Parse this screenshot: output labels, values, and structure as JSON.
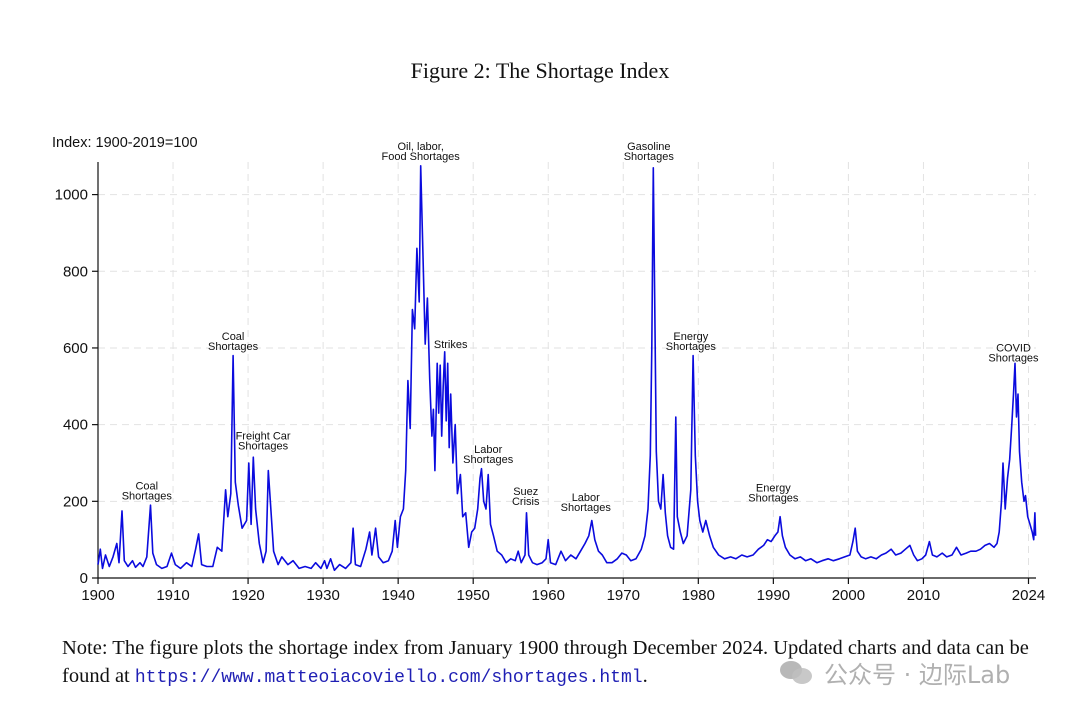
{
  "figure_title": "Figure 2: The Shortage Index",
  "note": {
    "text": "Note: The figure plots the shortage index from January 1900 through December 2024. Updated charts and data can be found at ",
    "url": "https://www.matteoiacoviello.com/shortages.html",
    "suffix": "."
  },
  "watermark": {
    "text": "公众号 · 边际Lab",
    "icon": "wechat-icon"
  },
  "colors": {
    "series": "#0b0bde",
    "grid": "#e2e2e2",
    "axis": "#111111",
    "link": "#1f1fb4"
  },
  "chart_data": {
    "type": "line",
    "title": "Figure 2: The Shortage Index",
    "ylabel": "Index: 1900-2019=100",
    "xlabel": "",
    "xlim": [
      1900,
      2025
    ],
    "ylim": [
      0,
      1085
    ],
    "xticks": [
      1900,
      1910,
      1920,
      1930,
      1940,
      1950,
      1960,
      1970,
      1980,
      1990,
      2000,
      2010,
      2024
    ],
    "yticks": [
      0,
      200,
      400,
      600,
      800,
      1000
    ],
    "grid": true,
    "series": [
      {
        "values": [
          [
            1900,
            35
          ],
          [
            1900.3,
            75
          ],
          [
            1900.6,
            25
          ],
          [
            1901,
            60
          ],
          [
            1901.5,
            30
          ],
          [
            1902,
            55
          ],
          [
            1902.5,
            90
          ],
          [
            1902.8,
            40
          ],
          [
            1903.2,
            175
          ],
          [
            1903.5,
            45
          ],
          [
            1904,
            30
          ],
          [
            1904.6,
            45
          ],
          [
            1905,
            28
          ],
          [
            1905.6,
            40
          ],
          [
            1906,
            30
          ],
          [
            1906.5,
            55
          ],
          [
            1907,
            190
          ],
          [
            1907.3,
            65
          ],
          [
            1907.8,
            35
          ],
          [
            1908.5,
            25
          ],
          [
            1909.2,
            30
          ],
          [
            1909.8,
            65
          ],
          [
            1910.3,
            35
          ],
          [
            1911,
            25
          ],
          [
            1911.8,
            40
          ],
          [
            1912.5,
            30
          ],
          [
            1913,
            75
          ],
          [
            1913.4,
            115
          ],
          [
            1913.8,
            35
          ],
          [
            1914.5,
            30
          ],
          [
            1915.3,
            30
          ],
          [
            1915.9,
            80
          ],
          [
            1916.5,
            70
          ],
          [
            1917,
            230
          ],
          [
            1917.3,
            160
          ],
          [
            1917.7,
            220
          ],
          [
            1918,
            580
          ],
          [
            1918.3,
            250
          ],
          [
            1918.7,
            190
          ],
          [
            1919.2,
            130
          ],
          [
            1919.8,
            150
          ],
          [
            1920.1,
            300
          ],
          [
            1920.4,
            140
          ],
          [
            1920.7,
            315
          ],
          [
            1921,
            180
          ],
          [
            1921.5,
            90
          ],
          [
            1922,
            40
          ],
          [
            1922.4,
            70
          ],
          [
            1922.7,
            280
          ],
          [
            1923,
            190
          ],
          [
            1923.4,
            70
          ],
          [
            1924,
            35
          ],
          [
            1924.5,
            55
          ],
          [
            1925.3,
            35
          ],
          [
            1926,
            45
          ],
          [
            1926.8,
            25
          ],
          [
            1927.6,
            30
          ],
          [
            1928.4,
            25
          ],
          [
            1929,
            40
          ],
          [
            1929.7,
            25
          ],
          [
            1930.2,
            45
          ],
          [
            1930.5,
            25
          ],
          [
            1931,
            50
          ],
          [
            1931.5,
            20
          ],
          [
            1932.2,
            35
          ],
          [
            1933,
            25
          ],
          [
            1933.7,
            40
          ],
          [
            1934,
            130
          ],
          [
            1934.3,
            35
          ],
          [
            1935,
            30
          ],
          [
            1935.7,
            75
          ],
          [
            1936.2,
            120
          ],
          [
            1936.5,
            60
          ],
          [
            1937,
            130
          ],
          [
            1937.4,
            55
          ],
          [
            1938,
            40
          ],
          [
            1938.7,
            45
          ],
          [
            1939.2,
            70
          ],
          [
            1939.6,
            150
          ],
          [
            1939.9,
            80
          ],
          [
            1940.3,
            160
          ],
          [
            1940.7,
            180
          ],
          [
            1941,
            280
          ],
          [
            1941.3,
            515
          ],
          [
            1941.6,
            390
          ],
          [
            1941.9,
            700
          ],
          [
            1942.2,
            650
          ],
          [
            1942.5,
            860
          ],
          [
            1942.8,
            720
          ],
          [
            1943,
            1075
          ],
          [
            1943.3,
            850
          ],
          [
            1943.6,
            610
          ],
          [
            1943.9,
            730
          ],
          [
            1944.2,
            520
          ],
          [
            1944.5,
            370
          ],
          [
            1944.7,
            440
          ],
          [
            1944.9,
            280
          ],
          [
            1945.2,
            560
          ],
          [
            1945.4,
            430
          ],
          [
            1945.6,
            555
          ],
          [
            1945.8,
            370
          ],
          [
            1946,
            500
          ],
          [
            1946.2,
            590
          ],
          [
            1946.4,
            410
          ],
          [
            1946.6,
            560
          ],
          [
            1946.8,
            340
          ],
          [
            1947,
            480
          ],
          [
            1947.3,
            300
          ],
          [
            1947.6,
            400
          ],
          [
            1947.9,
            220
          ],
          [
            1948.3,
            270
          ],
          [
            1948.6,
            160
          ],
          [
            1949,
            170
          ],
          [
            1949.4,
            80
          ],
          [
            1949.8,
            120
          ],
          [
            1950.2,
            130
          ],
          [
            1950.6,
            180
          ],
          [
            1950.9,
            260
          ],
          [
            1951.1,
            285
          ],
          [
            1951.4,
            200
          ],
          [
            1951.7,
            180
          ],
          [
            1952,
            270
          ],
          [
            1952.3,
            140
          ],
          [
            1952.7,
            110
          ],
          [
            1953.2,
            70
          ],
          [
            1953.8,
            60
          ],
          [
            1954.4,
            40
          ],
          [
            1955,
            50
          ],
          [
            1955.6,
            45
          ],
          [
            1956,
            70
          ],
          [
            1956.4,
            40
          ],
          [
            1956.9,
            60
          ],
          [
            1957.1,
            170
          ],
          [
            1957.4,
            60
          ],
          [
            1957.9,
            40
          ],
          [
            1958.5,
            35
          ],
          [
            1959.2,
            40
          ],
          [
            1959.7,
            50
          ],
          [
            1960,
            100
          ],
          [
            1960.3,
            40
          ],
          [
            1961,
            35
          ],
          [
            1961.7,
            70
          ],
          [
            1962.3,
            45
          ],
          [
            1963,
            60
          ],
          [
            1963.7,
            50
          ],
          [
            1964.3,
            70
          ],
          [
            1964.9,
            90
          ],
          [
            1965.4,
            110
          ],
          [
            1965.8,
            150
          ],
          [
            1966.2,
            100
          ],
          [
            1966.7,
            70
          ],
          [
            1967.2,
            60
          ],
          [
            1967.8,
            40
          ],
          [
            1968.5,
            40
          ],
          [
            1969.2,
            50
          ],
          [
            1969.8,
            65
          ],
          [
            1970.4,
            60
          ],
          [
            1971,
            45
          ],
          [
            1971.7,
            50
          ],
          [
            1972.4,
            75
          ],
          [
            1972.9,
            110
          ],
          [
            1973.3,
            180
          ],
          [
            1973.6,
            320
          ],
          [
            1973.8,
            600
          ],
          [
            1974,
            1070
          ],
          [
            1974.2,
            700
          ],
          [
            1974.4,
            330
          ],
          [
            1974.7,
            200
          ],
          [
            1975,
            180
          ],
          [
            1975.3,
            270
          ],
          [
            1975.6,
            170
          ],
          [
            1975.9,
            110
          ],
          [
            1976.3,
            80
          ],
          [
            1976.7,
            75
          ],
          [
            1977,
            420
          ],
          [
            1977.2,
            160
          ],
          [
            1977.6,
            120
          ],
          [
            1978,
            90
          ],
          [
            1978.5,
            110
          ],
          [
            1979,
            230
          ],
          [
            1979.3,
            580
          ],
          [
            1979.6,
            320
          ],
          [
            1979.9,
            200
          ],
          [
            1980.2,
            150
          ],
          [
            1980.6,
            120
          ],
          [
            1981,
            150
          ],
          [
            1981.5,
            110
          ],
          [
            1982,
            80
          ],
          [
            1982.7,
            60
          ],
          [
            1983.5,
            50
          ],
          [
            1984.3,
            55
          ],
          [
            1985,
            50
          ],
          [
            1985.8,
            60
          ],
          [
            1986.5,
            55
          ],
          [
            1987.3,
            60
          ],
          [
            1988,
            75
          ],
          [
            1988.7,
            85
          ],
          [
            1989.2,
            100
          ],
          [
            1989.7,
            95
          ],
          [
            1990.2,
            110
          ],
          [
            1990.6,
            120
          ],
          [
            1990.9,
            160
          ],
          [
            1991.2,
            110
          ],
          [
            1991.6,
            80
          ],
          [
            1992.2,
            60
          ],
          [
            1992.9,
            50
          ],
          [
            1993.6,
            55
          ],
          [
            1994.3,
            45
          ],
          [
            1995,
            50
          ],
          [
            1995.8,
            40
          ],
          [
            1996.5,
            45
          ],
          [
            1997.3,
            50
          ],
          [
            1998,
            45
          ],
          [
            1998.8,
            50
          ],
          [
            1999.5,
            55
          ],
          [
            2000.2,
            60
          ],
          [
            2000.6,
            95
          ],
          [
            2000.9,
            130
          ],
          [
            2001.2,
            70
          ],
          [
            2001.7,
            55
          ],
          [
            2002.3,
            50
          ],
          [
            2003,
            55
          ],
          [
            2003.7,
            50
          ],
          [
            2004.4,
            60
          ],
          [
            2005,
            65
          ],
          [
            2005.7,
            75
          ],
          [
            2006.3,
            60
          ],
          [
            2007,
            65
          ],
          [
            2007.6,
            75
          ],
          [
            2008.2,
            85
          ],
          [
            2008.7,
            60
          ],
          [
            2009.2,
            45
          ],
          [
            2009.8,
            50
          ],
          [
            2010.3,
            60
          ],
          [
            2010.8,
            95
          ],
          [
            2011.2,
            60
          ],
          [
            2011.8,
            55
          ],
          [
            2012.5,
            65
          ],
          [
            2013.1,
            55
          ],
          [
            2013.8,
            60
          ],
          [
            2014.4,
            80
          ],
          [
            2015,
            60
          ],
          [
            2015.7,
            65
          ],
          [
            2016.3,
            70
          ],
          [
            2017,
            70
          ],
          [
            2017.6,
            75
          ],
          [
            2018.2,
            85
          ],
          [
            2018.8,
            90
          ],
          [
            2019.4,
            80
          ],
          [
            2019.8,
            90
          ],
          [
            2020.1,
            120
          ],
          [
            2020.4,
            200
          ],
          [
            2020.6,
            300
          ],
          [
            2020.9,
            180
          ],
          [
            2021.2,
            260
          ],
          [
            2021.5,
            310
          ],
          [
            2021.8,
            410
          ],
          [
            2022,
            480
          ],
          [
            2022.2,
            560
          ],
          [
            2022.4,
            420
          ],
          [
            2022.6,
            480
          ],
          [
            2022.8,
            330
          ],
          [
            2023.1,
            250
          ],
          [
            2023.4,
            200
          ],
          [
            2023.6,
            215
          ],
          [
            2023.9,
            160
          ],
          [
            2024.2,
            140
          ],
          [
            2024.5,
            120
          ],
          [
            2024.7,
            100
          ],
          [
            2024.85,
            170
          ],
          [
            2024.95,
            110
          ]
        ]
      }
    ],
    "annotations": [
      {
        "lines": [
          "Coal",
          "Shortages"
        ],
        "x": 1906.5,
        "y": 205
      },
      {
        "lines": [
          "Coal",
          "Shortages"
        ],
        "x": 1918,
        "y": 595
      },
      {
        "lines": [
          "Freight Car",
          "Shortages"
        ],
        "x": 1922,
        "y": 335
      },
      {
        "lines": [
          "Oil, labor,",
          "Food Shortages"
        ],
        "x": 1943,
        "y": 1090
      },
      {
        "lines": [
          "Strikes"
        ],
        "x": 1947,
        "y": 600
      },
      {
        "lines": [
          "Labor",
          "Shortages"
        ],
        "x": 1952,
        "y": 300
      },
      {
        "lines": [
          "Suez",
          "Crisis"
        ],
        "x": 1957,
        "y": 190
      },
      {
        "lines": [
          "Labor",
          "Shortages"
        ],
        "x": 1965,
        "y": 175
      },
      {
        "lines": [
          "Gasoline",
          "Shortages"
        ],
        "x": 1973.4,
        "y": 1090
      },
      {
        "lines": [
          "Energy",
          "Shortages"
        ],
        "x": 1979,
        "y": 595
      },
      {
        "lines": [
          "Energy",
          "Shortages"
        ],
        "x": 1990,
        "y": 200
      },
      {
        "lines": [
          "COVID",
          "Shortages"
        ],
        "x": 2022,
        "y": 565
      }
    ]
  }
}
